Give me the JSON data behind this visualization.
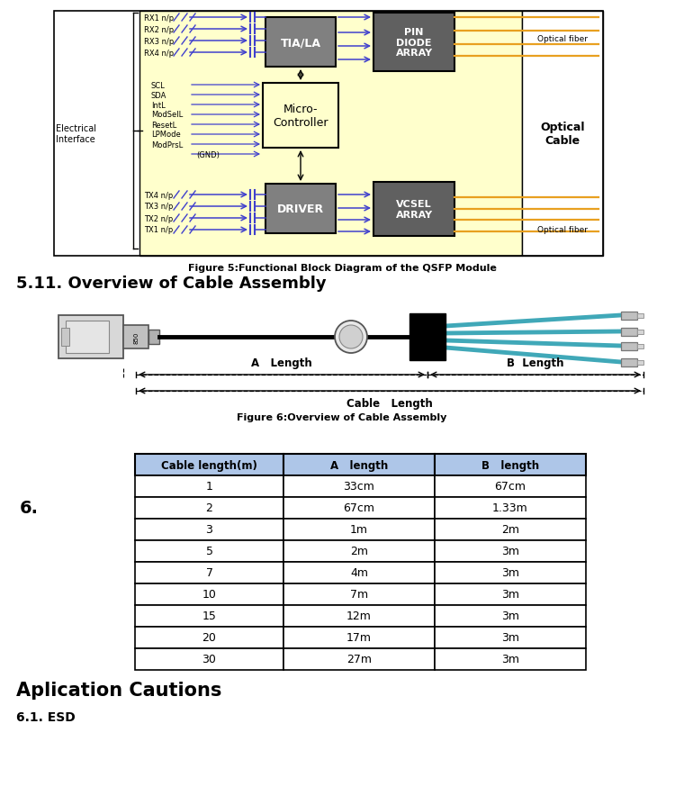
{
  "fig_width": 7.6,
  "fig_height": 8.95,
  "dpi": 100,
  "bg_color": "#ffffff",
  "section511_title": "5.11. Overview of Cable Assembly",
  "fig5_caption": "Figure 5:Functional Block Diagram of the QSFP Module",
  "fig6_caption": "Figure 6:Overview of Cable Assembly",
  "section6_label": "6.",
  "table_header": [
    "Cable length(m)",
    "A   length",
    "B   length"
  ],
  "table_rows": [
    [
      "1",
      "33cm",
      "67cm"
    ],
    [
      "2",
      "67cm",
      "1.33m"
    ],
    [
      "3",
      "1m",
      "2m"
    ],
    [
      "5",
      "2m",
      "3m"
    ],
    [
      "7",
      "4m",
      "3m"
    ],
    [
      "10",
      "7m",
      "3m"
    ],
    [
      "15",
      "12m",
      "3m"
    ],
    [
      "20",
      "17m",
      "3m"
    ],
    [
      "30",
      "27m",
      "3m"
    ]
  ],
  "table_header_bg": "#aec6e8",
  "table_border_color": "#000000",
  "section_aplication": "Aplication Cautions",
  "section61": "6.1. ESD",
  "rx_labels": [
    "RX1 n/p",
    "RX2 n/p",
    "RX3 n/p",
    "RX4 n/p"
  ],
  "tx_labels": [
    "TX4 n/p",
    "TX3 n/p",
    "TX2 n/p",
    "TX1 n/p"
  ],
  "ctrl_labels": [
    "SCL",
    "SDA",
    "IntL",
    "ModSelL",
    "ResetL",
    "LPMode",
    "ModPrsL"
  ],
  "yellow_fill": "#ffffcc",
  "gray_dark": "#606060",
  "gray_mid": "#808080",
  "orange_color": "#e8a020",
  "blue_color": "#4040cc",
  "teal_color": "#40a8b8"
}
